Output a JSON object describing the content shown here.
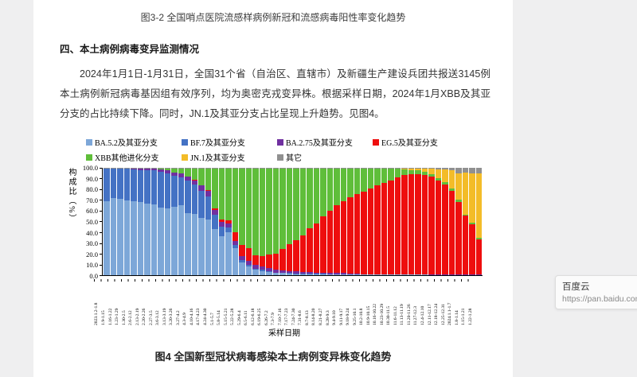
{
  "document": {
    "fig3_caption": "图3-2 全国哨点医院流感样病例新冠和流感病毒阳性率变化趋势",
    "section_heading": "四、本土病例病毒变异监测情况",
    "paragraph": "2024年1月1日-1月31日，全国31个省（自治区、直辖市）及新疆生产建设兵团共报送3145例本土病例新冠病毒基因组有效序列，均为奥密克戎变异株。根据采样日期，2024年1月XBB及其亚分支的占比持续下降。同时，JN.1及其亚分支占比呈现上升趋势。见图4。",
    "fig4_caption": "图4 全国新型冠状病毒感染本土病例变异株变化趋势"
  },
  "tooltip": {
    "title": "百度云",
    "url": "https://pan.baidu.com/dis"
  },
  "chart_data": {
    "type": "bar",
    "stacked": true,
    "percent": true,
    "title": "图4 全国新型冠状病毒感染本土病例变异株变化趋势",
    "xlabel": "采样日期",
    "ylabel": "构成比（%）",
    "ylim": [
      0,
      100
    ],
    "ytick_labels": [
      "100.0",
      "90.0",
      "80.0",
      "70.0",
      "60.0",
      "50.0",
      "40.0",
      "30.0",
      "20.0",
      "10.0",
      "0.0"
    ],
    "legend_position": "top",
    "grid": false,
    "categories": [
      "2023.1.2-1.8",
      "1.9-1.15",
      "1.16-1.22",
      "1.23-1.29",
      "1.30-2.5",
      "2.6-2.12",
      "2.13-2.19",
      "2.20-2.26",
      "2.27-3.5",
      "3.6-3.12",
      "3.13-3.19",
      "3.20-3.26",
      "3.27-4.2",
      "4.3-4.9",
      "4.10-4.16",
      "4.17-4.23",
      "4.24-4.30",
      "5.1-5.7",
      "5.8-5.14",
      "5.15-5.21",
      "5.22-5.28",
      "5.29-6.4",
      "6.5-6.11",
      "6.12-6.18",
      "6.19-6.25",
      "6.26-7.2",
      "7.3-7.9",
      "7.10-7.16",
      "7.17-7.23",
      "7.24-7.30",
      "7.31-8.6",
      "8.7-8.13",
      "8.14-8.20",
      "8.21-8.27",
      "8.28-9.3",
      "9.4-9.10",
      "9.11-9.17",
      "9.18-9.24",
      "9.25-10.1",
      "10.2-10.8",
      "10.9-10.15",
      "10.16-10.22",
      "10.23-10.29",
      "10.30-11.5",
      "11.6-11.12",
      "11.13-11.19",
      "11.20-11.26",
      "11.27-12.3",
      "12.4-12.10",
      "12.11-12.17",
      "12.18-12.24",
      "12.25-12.31",
      "2024.1.1-1.7",
      "1.8-1.14",
      "1.15-1.21",
      "1.22-1.28"
    ],
    "series": [
      {
        "name": "BA.5.2及其亚分支",
        "color": "#7DA7D8",
        "values": [
          69,
          72,
          71,
          70,
          69,
          68,
          67,
          66,
          63,
          62,
          64,
          65,
          58,
          57,
          53,
          52,
          43,
          36,
          40,
          25,
          12,
          8,
          5,
          4,
          3,
          2,
          2,
          1.5,
          1,
          1,
          1,
          1,
          1,
          0.5,
          0.5,
          0.5,
          0.5,
          0.5,
          0.5,
          0.5,
          0.5,
          0.5,
          0.5,
          0.5,
          0.5,
          0.5,
          0.5,
          0.5,
          0,
          0,
          0,
          0,
          0,
          0,
          0,
          0
        ]
      },
      {
        "name": "BF.7及其亚分支",
        "color": "#4472C4",
        "values": [
          30,
          27,
          28,
          29,
          29.5,
          30,
          31,
          32,
          33.5,
          33,
          28.5,
          26,
          30,
          27.5,
          25.5,
          21.5,
          13,
          9,
          4.5,
          3,
          2,
          1.5,
          1,
          1,
          0.5,
          0.5,
          0.5,
          0.5,
          0.5,
          0.5,
          0.5,
          0.5,
          0.5,
          0.5,
          0.5,
          0.5,
          0,
          0,
          0,
          0,
          0,
          0,
          0,
          0,
          0,
          0,
          0,
          0,
          0,
          0,
          0,
          0,
          0,
          0,
          0,
          0
        ]
      },
      {
        "name": "BA.2.75及其亚分支",
        "color": "#7030A0",
        "values": [
          0.5,
          0.5,
          0.5,
          0.5,
          1,
          1,
          1,
          1,
          2,
          2.5,
          3,
          3.5,
          4,
          4,
          5,
          5,
          5,
          5,
          4,
          4,
          4,
          4,
          3.5,
          3,
          3,
          2.5,
          2,
          2,
          2,
          1.5,
          1.5,
          1,
          1,
          1,
          1,
          1,
          1,
          1,
          0.5,
          0.5,
          0.5,
          0.5,
          0.5,
          0.5,
          0.5,
          0.5,
          0.5,
          0.5,
          0.5,
          0.5,
          0.5,
          0.5,
          0.5,
          0.5,
          0.5,
          0.5
        ]
      },
      {
        "name": "EG.5及其亚分支",
        "color": "#EE0E0E",
        "values": [
          0,
          0,
          0,
          0,
          0,
          0,
          0,
          0,
          0,
          0,
          0,
          0,
          0,
          0.5,
          0.5,
          1,
          1.5,
          2,
          3,
          8,
          10,
          12,
          9,
          10,
          13,
          15,
          20,
          25,
          29,
          34,
          41,
          46,
          52,
          58,
          63,
          67,
          71,
          74,
          77,
          80,
          83,
          85,
          87,
          90,
          92,
          93,
          93,
          92,
          91,
          88,
          84,
          78,
          68,
          55,
          47,
          33
        ]
      },
      {
        "name": "XBB其他进化分支",
        "color": "#5FBE3A",
        "values": [
          0,
          0,
          0,
          0,
          0,
          0.5,
          0.5,
          0.5,
          1,
          2,
          4,
          5,
          7.5,
          10.5,
          15.5,
          20,
          37,
          47.5,
          48,
          59.5,
          71.5,
          74,
          81,
          81.5,
          80,
          79.5,
          75,
          70.5,
          67,
          62.5,
          55.5,
          51,
          45,
          39.5,
          34.5,
          30.5,
          27,
          24,
          21.5,
          18.5,
          15.5,
          13.5,
          11.5,
          8,
          5.5,
          4,
          3.5,
          3,
          2.5,
          2,
          2,
          2.5,
          2,
          1,
          1.5,
          1
        ]
      },
      {
        "name": "JN.1及其亚分支",
        "color": "#F3BC28",
        "values": [
          0,
          0,
          0,
          0,
          0,
          0,
          0,
          0,
          0,
          0,
          0,
          0,
          0,
          0,
          0,
          0,
          0,
          0,
          0,
          0,
          0,
          0,
          0,
          0,
          0,
          0,
          0,
          0,
          0,
          0,
          0,
          0,
          0,
          0,
          0,
          0,
          0,
          0,
          0,
          0,
          0,
          0,
          0,
          0.5,
          1,
          1.5,
          2,
          3.5,
          5,
          8,
          12,
          16.5,
          24.5,
          39,
          46,
          60.5
        ]
      },
      {
        "name": "其它",
        "color": "#909090",
        "values": [
          0.5,
          0.5,
          0.5,
          0.5,
          0.5,
          0.5,
          0.5,
          0.5,
          0.5,
          0.5,
          0.5,
          0.5,
          0.5,
          0.5,
          0.5,
          0.5,
          0.5,
          0.5,
          0.5,
          0.5,
          0.5,
          0.5,
          0.5,
          0.5,
          0.5,
          0.5,
          0.5,
          0.5,
          0.5,
          0.5,
          0.5,
          0.5,
          0.5,
          0.5,
          0.5,
          0.5,
          0.5,
          0.5,
          0.5,
          0.5,
          0.5,
          0.5,
          0.5,
          0.5,
          0.5,
          0.5,
          0.5,
          0.5,
          1,
          1.5,
          1.5,
          2.5,
          5,
          4.5,
          5,
          5
        ]
      }
    ]
  }
}
